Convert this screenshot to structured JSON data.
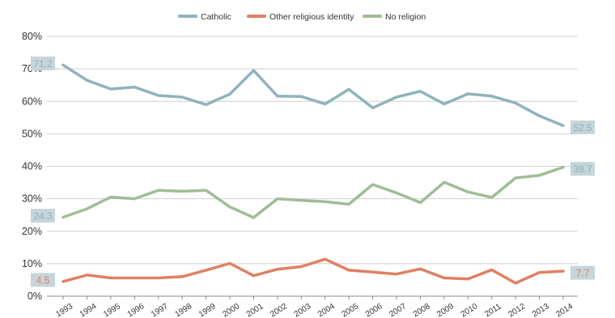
{
  "chart_data": {
    "type": "line",
    "title": "",
    "xlabel": "",
    "ylabel": "",
    "x": [
      "1993",
      "1994",
      "1995",
      "1996",
      "1997",
      "1998",
      "1999",
      "2000",
      "2001",
      "2002",
      "2003",
      "2004",
      "2005",
      "2006",
      "2007",
      "2008",
      "2009",
      "2010",
      "2011",
      "2012",
      "2013",
      "2014"
    ],
    "ylim": [
      0,
      80
    ],
    "yticks": [
      "0%",
      "10%",
      "20%",
      "30%",
      "40%",
      "50%",
      "60%",
      "70%",
      "80%"
    ],
    "grid": true,
    "legend_position": "top-center",
    "series": [
      {
        "name": "Catholic",
        "color": "#8fb3bd",
        "values": [
          71.2,
          66.5,
          63.8,
          64.4,
          61.8,
          61.3,
          59.0,
          62.2,
          69.5,
          61.6,
          61.5,
          59.2,
          63.7,
          58.0,
          61.3,
          63.1,
          59.2,
          62.3,
          61.6,
          59.5,
          55.5,
          52.5
        ],
        "start_label": "71.2",
        "end_label": "52.5",
        "label_color": "#8fb3bd",
        "label_bg": "#c5d5da"
      },
      {
        "name": "Other religious identity",
        "color": "#e07f63",
        "values": [
          4.5,
          6.5,
          5.6,
          5.6,
          5.6,
          6.0,
          8.0,
          10.1,
          6.3,
          8.3,
          9.1,
          11.4,
          8.0,
          7.4,
          6.8,
          8.4,
          5.6,
          5.3,
          8.1,
          4.0,
          7.3,
          7.7
        ],
        "start_label": "4.5",
        "end_label": "7.7",
        "label_color": "#e07f63",
        "label_bg": "#c5d5da"
      },
      {
        "name": "No religion",
        "color": "#9fbd95",
        "values": [
          24.3,
          26.9,
          30.5,
          30.0,
          32.6,
          32.3,
          32.6,
          27.5,
          24.2,
          30.0,
          29.5,
          29.1,
          28.3,
          34.4,
          31.8,
          28.8,
          35.1,
          32.1,
          30.4,
          36.4,
          37.2,
          39.7
        ],
        "start_label": "24.3",
        "end_label": "39.7",
        "label_color": "#8fb3bd",
        "label_bg": "#c5d5da"
      }
    ]
  }
}
